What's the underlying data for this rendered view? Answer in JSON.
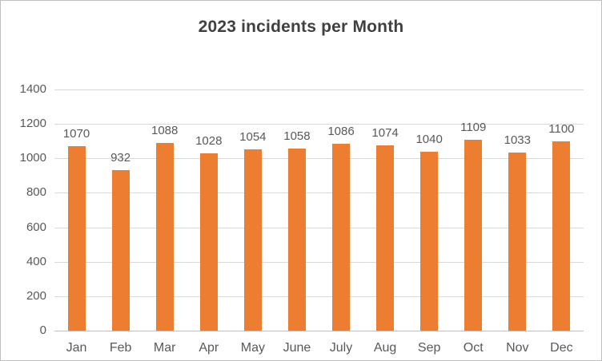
{
  "chart_data": {
    "type": "bar",
    "title": "2023 incidents per Month",
    "categories": [
      "Jan",
      "Feb",
      "Mar",
      "Apr",
      "May",
      "June",
      "July",
      "Aug",
      "Sep",
      "Oct",
      "Nov",
      "Dec"
    ],
    "values": [
      1070,
      932,
      1088,
      1028,
      1054,
      1058,
      1086,
      1074,
      1040,
      1109,
      1033,
      1100
    ],
    "xlabel": "",
    "ylabel": "",
    "ylim": [
      0,
      1400
    ],
    "ytick_step": 200,
    "ytick_labels": [
      "0",
      "200",
      "400",
      "600",
      "800",
      "1000",
      "1200",
      "1400"
    ],
    "grid": "horizontal",
    "legend": "none",
    "data_labels": true,
    "colors": {
      "bar": "#ED7D31",
      "gridline": "#D9D9D9",
      "axis_line": "#BFBFBF",
      "tick_label": "#595959",
      "data_label": "#595959",
      "title": "#404040",
      "background": "#FFFFFF",
      "border": "#BFBFBF"
    }
  }
}
